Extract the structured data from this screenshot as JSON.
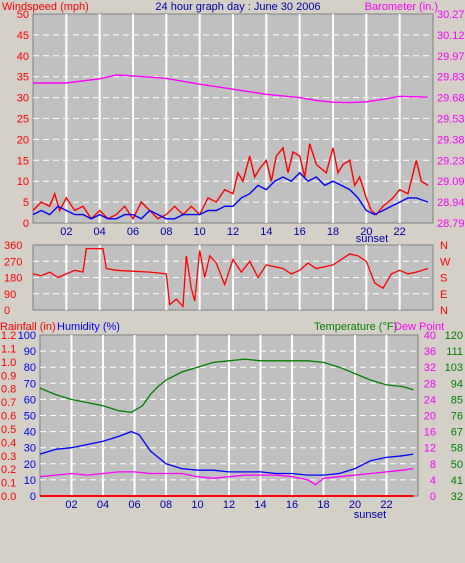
{
  "colors": {
    "background": "#d4d0c8",
    "plot_bg": "#c0c0c0",
    "grid": "#ffffff",
    "red": "#ff0000",
    "blue": "#0000ff",
    "magenta": "#ff00ff",
    "green": "#008000",
    "dark_blue": "#0000aa"
  },
  "header": {
    "left_label": "Windspeed (mph)",
    "title": "24 hour graph day : June 30 2006",
    "right_label": "Barometer (in.)"
  },
  "x_ticks": [
    "02",
    "04",
    "06",
    "08",
    "10",
    "12",
    "14",
    "16",
    "18",
    "20",
    "22"
  ],
  "sunset_label": "sunset",
  "chart_data": [
    {
      "type": "line",
      "name": "wind-baro",
      "x_range": [
        0,
        24
      ],
      "y_left": {
        "label": "Windspeed (mph)",
        "ticks": [
          0,
          5,
          10,
          15,
          20,
          25,
          30,
          35,
          40,
          45,
          50
        ],
        "range": [
          0,
          50
        ]
      },
      "y_right": {
        "label": "Barometer (in.)",
        "ticks": [
          "28.79",
          "28.94",
          "29.09",
          "29.23",
          "29.38",
          "29.53",
          "29.68",
          "29.83",
          "29.97",
          "30.12",
          "30.27"
        ]
      },
      "series": [
        {
          "color_key": "magenta",
          "axis": "right",
          "x": [
            0,
            2,
            4,
            5,
            6,
            8,
            10,
            12,
            14,
            16,
            17,
            18,
            19,
            20,
            21,
            22,
            23,
            23.7
          ],
          "y": [
            33.5,
            33.5,
            34.5,
            35.4,
            35.2,
            34.6,
            33.2,
            32.0,
            30.8,
            30.0,
            29.3,
            28.9,
            28.8,
            29.0,
            29.6,
            30.3,
            30.2,
            30.1
          ]
        },
        {
          "color_key": "red",
          "axis": "left",
          "x": [
            0,
            0.5,
            1,
            1.3,
            1.6,
            2,
            2.5,
            3,
            3.5,
            4,
            4.5,
            5,
            5.5,
            6,
            6.5,
            7,
            7.5,
            8,
            8.5,
            9,
            9.5,
            10,
            10.5,
            11,
            11.5,
            12,
            12.3,
            12.6,
            13,
            13.3,
            13.6,
            14,
            14.3,
            14.6,
            15,
            15.3,
            15.6,
            16,
            16.3,
            16.6,
            17,
            17.3,
            17.6,
            18,
            18.3,
            18.6,
            19,
            19.3,
            19.6,
            20,
            20.3,
            20.6,
            21,
            21.3,
            21.6,
            22,
            22.5,
            23,
            23.3,
            23.7
          ],
          "y": [
            3,
            5,
            4,
            7,
            3,
            6,
            3,
            4,
            1,
            3,
            1,
            2,
            4,
            1,
            5,
            3,
            1,
            2,
            4,
            2,
            4,
            2,
            6,
            5,
            8,
            7,
            12,
            10,
            16,
            11,
            13,
            15,
            10,
            16,
            18,
            12,
            17,
            16,
            11,
            19,
            14,
            13,
            12,
            18,
            12,
            14,
            15,
            9,
            11,
            6,
            3,
            2,
            4,
            5,
            6,
            8,
            7,
            15,
            10,
            9
          ]
        },
        {
          "color_key": "blue",
          "axis": "left",
          "x": [
            0,
            0.5,
            1,
            1.5,
            2,
            2.5,
            3,
            3.5,
            4,
            4.5,
            5,
            5.5,
            6,
            6.5,
            7,
            7.5,
            8,
            8.5,
            9,
            9.5,
            10,
            10.5,
            11,
            11.5,
            12,
            12.5,
            13,
            13.5,
            14,
            14.5,
            15,
            15.5,
            16,
            16.5,
            17,
            17.5,
            18,
            18.5,
            19,
            19.5,
            20,
            20.5,
            21,
            21.5,
            22,
            22.5,
            23,
            23.7
          ],
          "y": [
            2,
            3,
            2,
            4,
            3,
            2,
            2,
            1,
            2,
            1,
            1,
            2,
            2,
            1,
            3,
            2,
            1,
            1,
            2,
            2,
            2,
            3,
            3,
            4,
            4,
            6,
            7,
            9,
            8,
            10,
            11,
            10,
            12,
            10,
            11,
            9,
            10,
            9,
            8,
            6,
            3,
            2,
            3,
            4,
            5,
            6,
            6,
            5
          ]
        }
      ]
    },
    {
      "type": "line",
      "name": "wind-direction",
      "x_range": [
        0,
        24
      ],
      "y_left": {
        "ticks": [
          0,
          90,
          180,
          270,
          360
        ],
        "range": [
          0,
          360
        ]
      },
      "y_right": {
        "ticks": [
          "N",
          "E",
          "S",
          "W",
          "N"
        ]
      },
      "series": [
        {
          "color_key": "red",
          "axis": "left",
          "x": [
            0,
            0.5,
            1,
            1.5,
            2,
            2.5,
            3,
            3.2,
            4.2,
            4.4,
            5,
            6,
            7,
            8,
            8.2,
            8.6,
            9,
            9.2,
            9.5,
            9.7,
            10,
            10.3,
            10.6,
            11,
            11.5,
            12,
            12.5,
            13,
            13.5,
            14,
            14.5,
            15,
            15.5,
            16,
            16.5,
            17,
            17.5,
            18,
            18.5,
            19,
            19.5,
            20,
            20.5,
            21,
            21.5,
            22,
            22.5,
            23,
            23.7
          ],
          "y": [
            200,
            190,
            210,
            180,
            200,
            220,
            210,
            340,
            340,
            230,
            220,
            215,
            210,
            200,
            30,
            60,
            20,
            300,
            120,
            50,
            330,
            180,
            300,
            260,
            140,
            280,
            210,
            270,
            180,
            250,
            240,
            230,
            200,
            220,
            260,
            230,
            240,
            250,
            280,
            310,
            300,
            270,
            150,
            120,
            200,
            220,
            200,
            210,
            230
          ]
        }
      ]
    },
    {
      "type": "line",
      "name": "rain-humidity-temp",
      "x_range": [
        0,
        24
      ],
      "y_left_rain": {
        "label": "Rainfall (in)",
        "ticks": [
          "0.0",
          "0.1",
          "0.2",
          "0.3",
          "0.4",
          "0.5",
          "0.6",
          "0.7",
          "0.8",
          "0.9",
          "1.0",
          "1.1",
          "1.2"
        ]
      },
      "y_left_humidity": {
        "label": "Humidity (%)",
        "ticks": [
          0,
          10,
          20,
          30,
          40,
          50,
          60,
          70,
          80,
          90,
          100
        ],
        "range": [
          0,
          100
        ]
      },
      "y_right_temp": {
        "label": "Temperature (°F)",
        "ticks": [
          32,
          41,
          50,
          58,
          67,
          76,
          85,
          94,
          103,
          111,
          120
        ]
      },
      "y_right_dew": {
        "label": "Dew Point",
        "ticks": [
          0,
          4,
          8,
          12,
          16,
          20,
          24,
          28,
          32,
          36,
          40
        ]
      },
      "series": [
        {
          "color_key": "green",
          "axis": "temp_pct",
          "x": [
            0,
            1,
            2,
            3,
            4,
            5,
            5.8,
            6.5,
            7,
            7.5,
            8,
            9,
            10,
            11,
            12,
            13,
            14,
            15,
            16,
            17,
            18,
            19,
            20,
            21,
            22,
            23,
            23.7
          ],
          "y": [
            67,
            63,
            60,
            58,
            56,
            53,
            52,
            56,
            63,
            68,
            72,
            77,
            80,
            83,
            84,
            85,
            84,
            84,
            84,
            84,
            83,
            80,
            76,
            72,
            69,
            68,
            66
          ]
        },
        {
          "color_key": "blue",
          "axis": "humidity",
          "x": [
            0,
            1,
            2,
            3,
            4,
            5,
            5.8,
            6.3,
            7,
            8,
            9,
            10,
            11,
            12,
            13,
            14,
            15,
            16,
            17,
            18,
            19,
            20,
            21,
            22,
            23,
            23.7
          ],
          "y": [
            26,
            29,
            30,
            32,
            34,
            37,
            40,
            38,
            28,
            20,
            17,
            16,
            16,
            15,
            15,
            15,
            14,
            14,
            13,
            13,
            14,
            17,
            22,
            24,
            25,
            26
          ]
        },
        {
          "color_key": "magenta",
          "axis": "dew_pct",
          "x": [
            0,
            1,
            2,
            3,
            4,
            5,
            6,
            7,
            8,
            9,
            10,
            11,
            12,
            13,
            14,
            15,
            16,
            17,
            17.5,
            18,
            19,
            20,
            21,
            22,
            23,
            23.7
          ],
          "y": [
            12,
            13,
            14,
            13,
            14,
            15,
            15,
            14,
            14,
            14,
            12,
            11,
            12,
            13,
            13,
            13,
            12,
            10,
            7,
            11,
            12,
            13,
            14,
            15,
            16,
            17
          ]
        },
        {
          "color_key": "red",
          "axis": "rain",
          "x": [
            0,
            23.7
          ],
          "y": [
            0,
            0
          ]
        }
      ]
    }
  ]
}
